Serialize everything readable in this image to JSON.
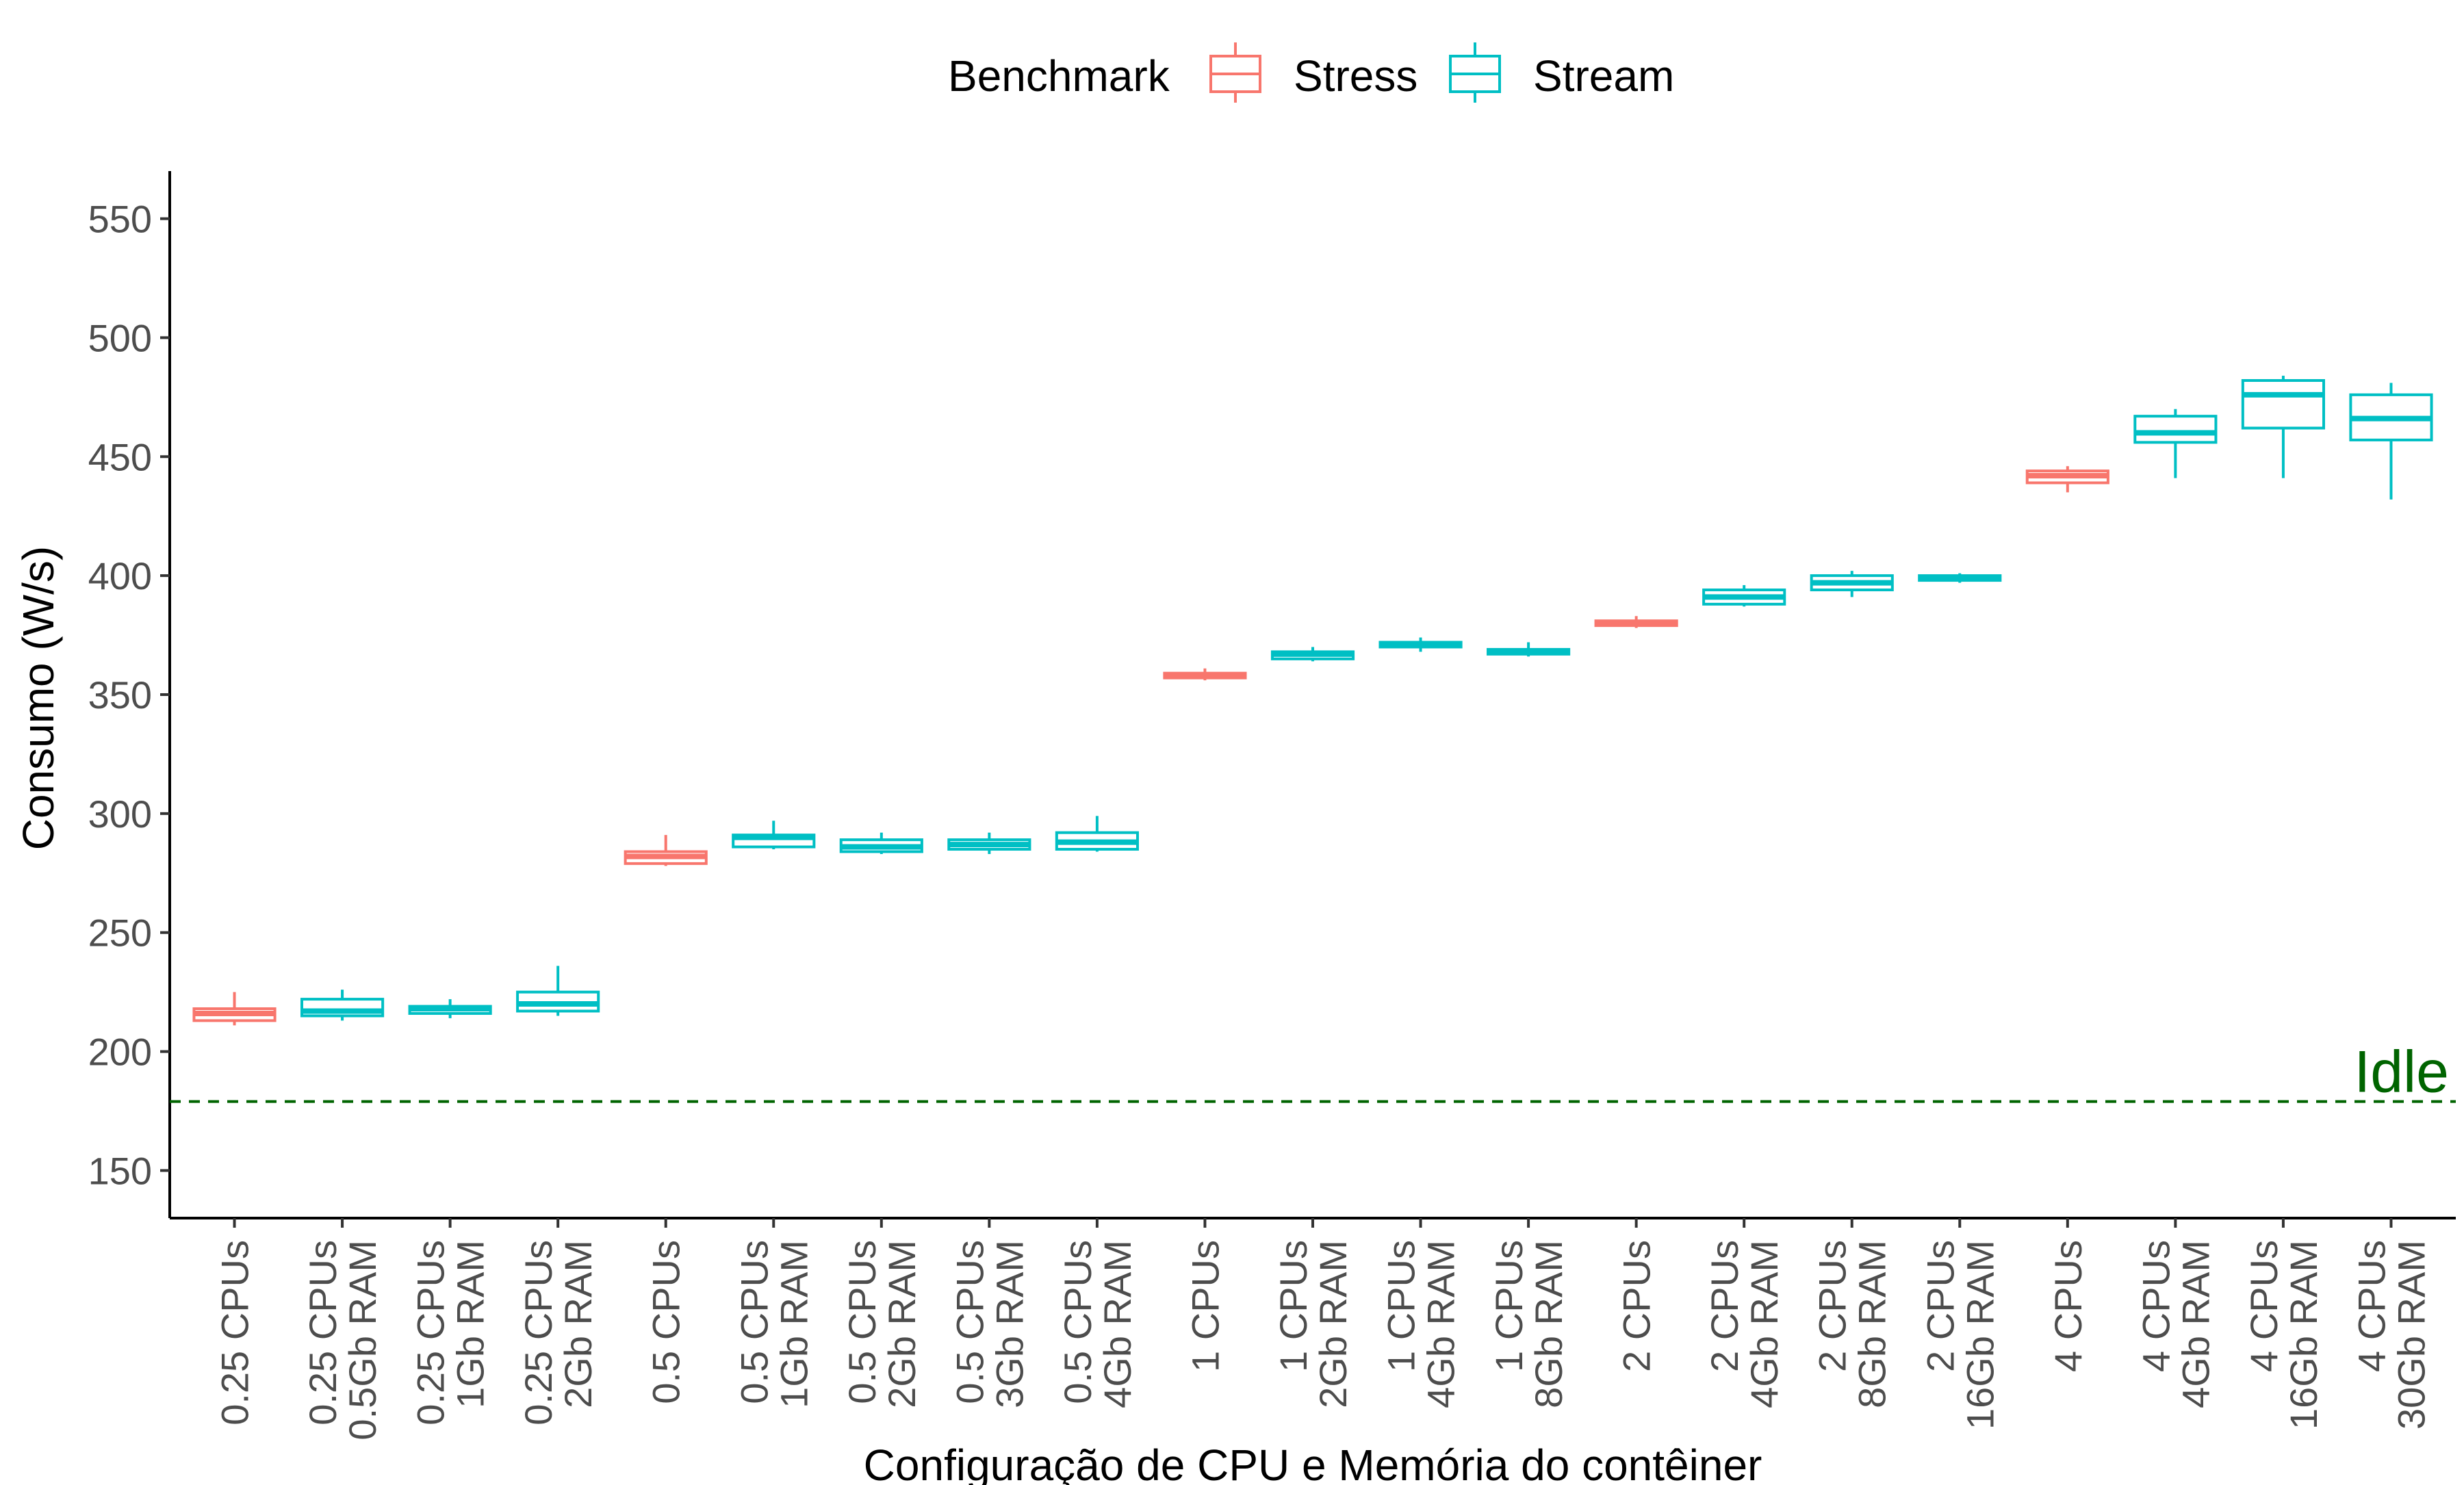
{
  "chart_data": {
    "type": "boxplot",
    "title": "",
    "xlabel": "Configuração de CPU e Memória do contêiner",
    "ylabel": "Consumo (W/s)",
    "ylim": [
      130,
      570
    ],
    "yticks": [
      150,
      200,
      250,
      300,
      350,
      400,
      450,
      500,
      550
    ],
    "grid": false,
    "legend": {
      "title": "Benchmark",
      "position": "top",
      "items": [
        {
          "name": "Stress",
          "color": "#F8766D"
        },
        {
          "name": "Stream",
          "color": "#00BFC4"
        }
      ]
    },
    "reference_line": {
      "label": "Idle",
      "value": 179,
      "color": "#006400",
      "style": "dashed"
    },
    "categories": [
      {
        "line1": "0.25 CPUs",
        "line2": "",
        "series": "Stress",
        "min": 211,
        "q1": 213,
        "median": 216,
        "q3": 218,
        "max": 225
      },
      {
        "line1": "0.25 CPUs",
        "line2": "0.5Gb RAM",
        "series": "Stream",
        "min": 213,
        "q1": 215,
        "median": 217,
        "q3": 222,
        "max": 226
      },
      {
        "line1": "0.25 CPUs",
        "line2": "1Gb RAM",
        "series": "Stream",
        "min": 214,
        "q1": 216,
        "median": 218,
        "q3": 219,
        "max": 222
      },
      {
        "line1": "0.25 CPUs",
        "line2": "2Gb RAM",
        "series": "Stream",
        "min": 215,
        "q1": 217,
        "median": 220,
        "q3": 225,
        "max": 236
      },
      {
        "line1": "0.5 CPUs",
        "line2": "",
        "series": "Stress",
        "min": 278,
        "q1": 279,
        "median": 282,
        "q3": 284,
        "max": 291
      },
      {
        "line1": "0.5 CPUs",
        "line2": "1Gb RAM",
        "series": "Stream",
        "min": 285,
        "q1": 286,
        "median": 290,
        "q3": 291,
        "max": 297
      },
      {
        "line1": "0.5 CPUs",
        "line2": "2Gb RAM",
        "series": "Stream",
        "min": 283,
        "q1": 284,
        "median": 286,
        "q3": 289,
        "max": 292
      },
      {
        "line1": "0.5 CPUs",
        "line2": "3Gb RAM",
        "series": "Stream",
        "min": 283,
        "q1": 285,
        "median": 287,
        "q3": 289,
        "max": 292
      },
      {
        "line1": "0.5 CPUs",
        "line2": "4Gb RAM",
        "series": "Stream",
        "min": 284,
        "q1": 285,
        "median": 288,
        "q3": 292,
        "max": 299
      },
      {
        "line1": "1 CPUs",
        "line2": "",
        "series": "Stress",
        "min": 356,
        "q1": 357,
        "median": 358,
        "q3": 359,
        "max": 361
      },
      {
        "line1": "1 CPUs",
        "line2": "2Gb RAM",
        "series": "Stream",
        "min": 364,
        "q1": 365,
        "median": 367,
        "q3": 368,
        "max": 370
      },
      {
        "line1": "1 CPUs",
        "line2": "4Gb RAM",
        "series": "Stream",
        "min": 368,
        "q1": 370,
        "median": 371,
        "q3": 372,
        "max": 374
      },
      {
        "line1": "1 CPUs",
        "line2": "8Gb RAM",
        "series": "Stream",
        "min": 366,
        "q1": 367,
        "median": 368,
        "q3": 369,
        "max": 372
      },
      {
        "line1": "2 CPUs",
        "line2": "",
        "series": "Stress",
        "min": 378,
        "q1": 379,
        "median": 380,
        "q3": 381,
        "max": 383
      },
      {
        "line1": "2 CPUs",
        "line2": "4Gb RAM",
        "series": "Stream",
        "min": 387,
        "q1": 388,
        "median": 391,
        "q3": 394,
        "max": 396
      },
      {
        "line1": "2 CPUs",
        "line2": "8Gb RAM",
        "series": "Stream",
        "min": 391,
        "q1": 394,
        "median": 397,
        "q3": 400,
        "max": 402
      },
      {
        "line1": "2 CPUs",
        "line2": "16Gb RAM",
        "series": "Stream",
        "min": 397,
        "q1": 398,
        "median": 399,
        "q3": 400,
        "max": 401
      },
      {
        "line1": "4 CPUs",
        "line2": "",
        "series": "Stress",
        "min": 435,
        "q1": 439,
        "median": 442,
        "q3": 444,
        "max": 446
      },
      {
        "line1": "4 CPUs",
        "line2": "4Gb RAM",
        "series": "Stream",
        "min": 441,
        "q1": 456,
        "median": 460,
        "q3": 467,
        "max": 470
      },
      {
        "line1": "4 CPUs",
        "line2": "16Gb RAM",
        "series": "Stream",
        "min": 441,
        "q1": 462,
        "median": 476,
        "q3": 482,
        "max": 484
      },
      {
        "line1": "4 CPUs",
        "line2": "30Gb RAM",
        "series": "Stream",
        "min": 432,
        "q1": 457,
        "median": 466,
        "q3": 476,
        "max": 481
      }
    ]
  }
}
